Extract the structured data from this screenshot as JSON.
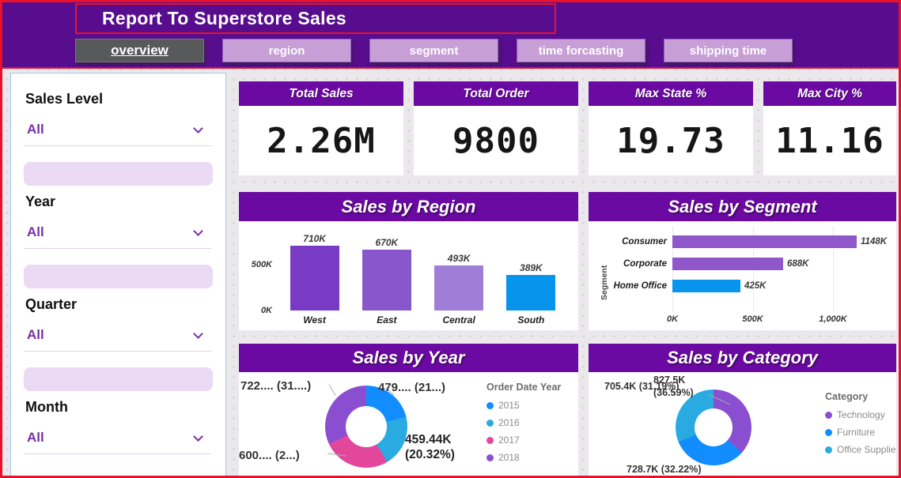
{
  "page": {
    "title": "Report To Superstore Sales"
  },
  "nav": {
    "tabs": [
      {
        "label": "overview",
        "active": true
      },
      {
        "label": "region",
        "active": false
      },
      {
        "label": "segment",
        "active": false
      },
      {
        "label": "time forcasting",
        "active": false
      },
      {
        "label": "shipping time",
        "active": false
      }
    ]
  },
  "filters": {
    "slicers": [
      {
        "label": "Sales Level",
        "value": "All"
      },
      {
        "label": "Year",
        "value": "All"
      },
      {
        "label": "Quarter",
        "value": "All"
      },
      {
        "label": "Month",
        "value": "All"
      }
    ]
  },
  "kpis": [
    {
      "title": "Total Sales",
      "value": "2.26M"
    },
    {
      "title": "Total Order",
      "value": "9800"
    },
    {
      "title": "Max State %",
      "value": "19.73"
    },
    {
      "title": "Max City %",
      "value": "11.16"
    }
  ],
  "chart_data": [
    {
      "id": "sales-by-region",
      "type": "bar",
      "title": "Sales by Region",
      "categories": [
        "West",
        "East",
        "Central",
        "South"
      ],
      "values": [
        710,
        670,
        493,
        389
      ],
      "value_labels": [
        "710K",
        "670K",
        "493K",
        "389K"
      ],
      "colors": [
        "#7A3BC4",
        "#8A56CC",
        "#9F7ED8",
        "#0794EC"
      ],
      "ylim": [
        0,
        710
      ],
      "y_ticks": [
        {
          "label": "0K",
          "value": 0
        },
        {
          "label": "500K",
          "value": 500
        }
      ],
      "grid": false,
      "legend_position": "none"
    },
    {
      "id": "sales-by-segment",
      "type": "bar",
      "title": "Sales by Segment",
      "axis_title": "Segment",
      "categories": [
        "Consumer",
        "Corporate",
        "Home Office"
      ],
      "values": [
        1148,
        688,
        425
      ],
      "value_labels": [
        "1148K",
        "688K",
        "425K"
      ],
      "colors": [
        "#8F57C9",
        "#8F57C9",
        "#0794EC"
      ],
      "xlim": [
        0,
        1148
      ],
      "x_ticks": [
        {
          "label": "0K",
          "value": 0
        },
        {
          "label": "500K",
          "value": 500
        },
        {
          "label": "1,000K",
          "value": 1000
        }
      ],
      "grid": true,
      "legend_position": "none"
    },
    {
      "id": "sales-by-year",
      "type": "pie",
      "title": "Sales by Year",
      "legend_title": "Order Date Year",
      "legend_position": "right",
      "categories": [
        "2015",
        "2016",
        "2017",
        "2018"
      ],
      "values_k": [
        479,
        459.44,
        600,
        722
      ],
      "percents": [
        21.2,
        20.32,
        26.54,
        31.94
      ],
      "colors": [
        "#118DFF",
        "#29ABE2",
        "#E2479C",
        "#8A4FD0"
      ],
      "labels": [
        {
          "pos": "tr",
          "text": "479.... (21...)"
        },
        {
          "pos": "br",
          "text": "459.44K (20.32%)"
        },
        {
          "pos": "bl",
          "text": "600.... (2...)"
        },
        {
          "pos": "tl",
          "text": "722.... (31....)"
        }
      ]
    },
    {
      "id": "sales-by-category",
      "type": "pie",
      "title": "Sales by Category",
      "legend_title": "Category",
      "legend_position": "right",
      "categories": [
        "Technology",
        "Furniture",
        "Office Supplie"
      ],
      "values_k": [
        827.5,
        728.7,
        705.4
      ],
      "percents": [
        36.59,
        32.22,
        31.19
      ],
      "colors": [
        "#8A4FD0",
        "#118DFF",
        "#29ABE2"
      ],
      "labels": [
        {
          "pos": "tr",
          "text": "827.5K (36.59%)"
        },
        {
          "pos": "b",
          "text": "728.7K (32.22%)"
        },
        {
          "pos": "tl",
          "text": "705.4K (31.19%)"
        }
      ]
    }
  ],
  "theme": {
    "page_border_red": "#E8112C",
    "header_purple": "#570D8D",
    "band_purple": "#6B0AA2",
    "nav_pill_bg": "#C79FD6",
    "nav_pill_border": "#9A5FC2",
    "active_tab_bg": "#58595B",
    "slicer_purple": "#7A2EA8",
    "slicer_separator": "#EBDAF3",
    "sidebar_border": "#A9C5E8",
    "content_bg": "#EAE8EB",
    "blue": "#0794EC",
    "pink": "#E2479C",
    "purple": "#8A4FD0"
  }
}
